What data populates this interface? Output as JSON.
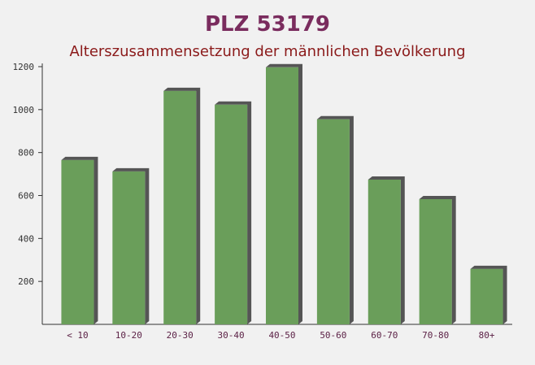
{
  "chart_data": {
    "type": "bar",
    "title": "PLZ 53179",
    "subtitle": "Alterszusammensetzung der männlichen Bevölkerung",
    "categories": [
      "< 10",
      "10-20",
      "20-30",
      "30-40",
      "40-50",
      "50-60",
      "60-70",
      "70-80",
      "80+"
    ],
    "values": [
      765,
      712,
      1087,
      1023,
      1197,
      955,
      674,
      583,
      258
    ],
    "color": "#6a9e5a",
    "ylim": [
      0,
      1200
    ],
    "yticks": [
      200,
      400,
      600,
      800,
      1000,
      1200
    ]
  }
}
